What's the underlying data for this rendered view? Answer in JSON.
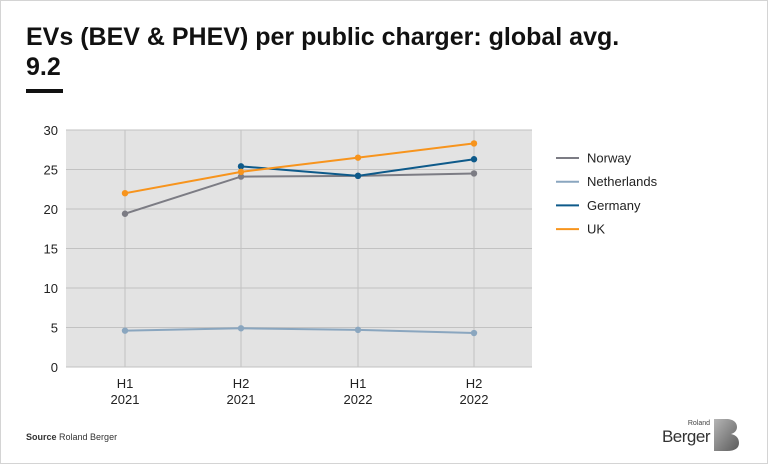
{
  "title": "EVs (BEV & PHEV) per public charger: global avg. 9.2",
  "source": {
    "label": "Source",
    "text": "Roland Berger"
  },
  "logo": {
    "line1": "Roland",
    "line2": "Berger"
  },
  "colors": {
    "Norway": "#7c7c84",
    "Netherlands": "#8aa6bf",
    "Germany": "#0e5a8a",
    "UK": "#f7941d",
    "plot_bg": "#e3e3e3",
    "grid": "#c2c2c2"
  },
  "chart_data": {
    "type": "line",
    "title": "EVs (BEV & PHEV) per public charger: global avg. 9.2",
    "xlabel": "",
    "ylabel": "",
    "categories": [
      [
        "H1",
        "2021"
      ],
      [
        "H2",
        "2021"
      ],
      [
        "H1",
        "2022"
      ],
      [
        "H2",
        "2022"
      ]
    ],
    "ylim": [
      0,
      30
    ],
    "yticks": [
      0,
      5,
      10,
      15,
      20,
      25,
      30
    ],
    "grid": true,
    "legend_position": "right",
    "series": [
      {
        "name": "Norway",
        "values": [
          19.4,
          24.1,
          24.2,
          24.5
        ]
      },
      {
        "name": "Netherlands",
        "values": [
          4.6,
          4.9,
          4.7,
          4.3
        ]
      },
      {
        "name": "Germany",
        "values": [
          null,
          25.4,
          24.2,
          26.3
        ]
      },
      {
        "name": "UK",
        "values": [
          22.0,
          24.7,
          26.5,
          28.3
        ]
      }
    ]
  }
}
